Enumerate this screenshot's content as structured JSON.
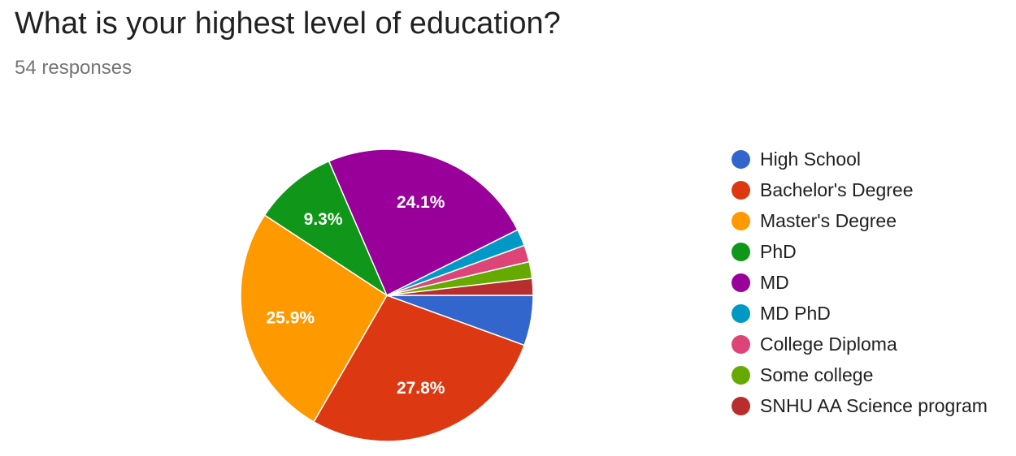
{
  "title": "What is your highest level of education?",
  "subtitle": "54 responses",
  "chart_data": {
    "type": "pie",
    "total": 54,
    "slices": [
      {
        "label": "High School",
        "value": 3,
        "percent_label": "",
        "color": "#3366cc"
      },
      {
        "label": "Bachelor's Degree",
        "value": 15,
        "percent_label": "27.8%",
        "color": "#dc3912"
      },
      {
        "label": "Master's Degree",
        "value": 14,
        "percent_label": "25.9%",
        "color": "#ff9900"
      },
      {
        "label": "PhD",
        "value": 5,
        "percent_label": "9.3%",
        "color": "#109618"
      },
      {
        "label": "MD",
        "value": 13,
        "percent_label": "24.1%",
        "color": "#990099"
      },
      {
        "label": "MD PhD",
        "value": 1,
        "percent_label": "",
        "color": "#0099c6"
      },
      {
        "label": "College Diploma",
        "value": 1,
        "percent_label": "",
        "color": "#dd4477"
      },
      {
        "label": "Some college",
        "value": 1,
        "percent_label": "",
        "color": "#66aa00"
      },
      {
        "label": "SNHU AA Science program",
        "value": 1,
        "percent_label": "",
        "color": "#b82e2e"
      }
    ],
    "legend_position": "right"
  }
}
